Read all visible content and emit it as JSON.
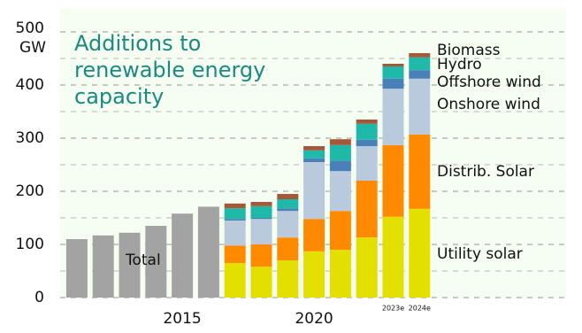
{
  "chart_data": {
    "type": "stacked_bar",
    "title_lines": [
      "Additions to",
      "renewable energy",
      "capacity"
    ],
    "y_unit": "GW",
    "categories": [
      null,
      null,
      null,
      null,
      "2015",
      null,
      null,
      null,
      null,
      "2020",
      null,
      null,
      "2023e",
      "2024e"
    ],
    "series": [
      {
        "name": "Total",
        "color": "#a3a3a3",
        "values": [
          110,
          117,
          122,
          135,
          158,
          171,
          null,
          null,
          null,
          null,
          null,
          null,
          null,
          null
        ]
      },
      {
        "name": "Utility solar",
        "color": "#e3e000",
        "values": [
          null,
          null,
          null,
          null,
          null,
          null,
          65,
          58,
          70,
          87,
          90,
          113,
          152,
          167
        ]
      },
      {
        "name": "Distrib. Solar",
        "color": "#ff8a00",
        "values": [
          null,
          null,
          null,
          null,
          null,
          null,
          33,
          42,
          43,
          61,
          73,
          107,
          135,
          140
        ]
      },
      {
        "name": "Onshore wind",
        "color": "#b9cadc",
        "values": [
          null,
          null,
          null,
          null,
          null,
          null,
          47,
          48,
          50,
          107,
          75,
          65,
          106,
          105
        ]
      },
      {
        "name": "Offshore wind",
        "color": "#4a80b8",
        "values": [
          null,
          null,
          null,
          null,
          null,
          null,
          3,
          2,
          5,
          7,
          20,
          12,
          19,
          16
        ]
      },
      {
        "name": "Hydro",
        "color": "#1fb9a9",
        "values": [
          null,
          null,
          null,
          null,
          null,
          null,
          20,
          22,
          17,
          15,
          29,
          30,
          23,
          24
        ]
      },
      {
        "name": "Biomass",
        "color": "#a5573a",
        "values": [
          null,
          null,
          null,
          null,
          null,
          null,
          9,
          8,
          10,
          8,
          11,
          8,
          5,
          8
        ]
      }
    ],
    "ylim": [
      0,
      500
    ],
    "yticks": [
      0,
      100,
      200,
      300,
      400,
      500
    ],
    "grid": true
  }
}
